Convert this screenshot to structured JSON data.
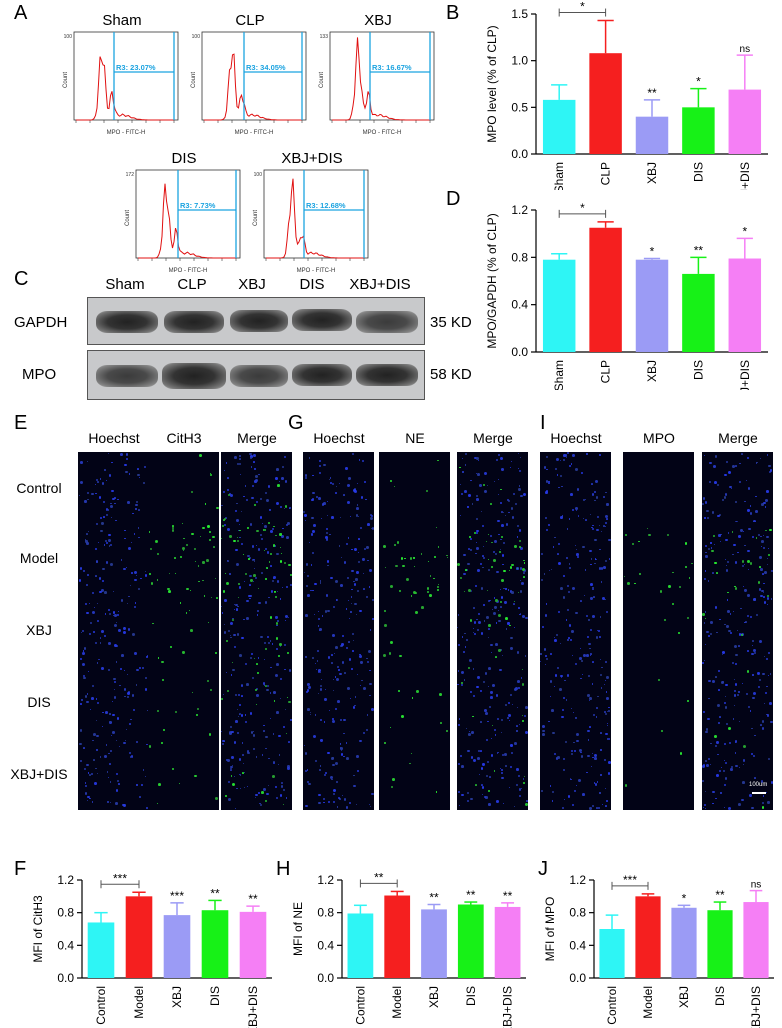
{
  "panels": {
    "A": "A",
    "B": "B",
    "C": "C",
    "D": "D",
    "E": "E",
    "F": "F",
    "G": "G",
    "H": "H",
    "I": "I",
    "J": "J"
  },
  "flow": {
    "xaxis_label": "MPO - FITC-H",
    "yaxis_label": "Count",
    "plots": [
      {
        "title": "Sham",
        "gate": "R3: 23.07%",
        "ymax": "100"
      },
      {
        "title": "CLP",
        "gate": "R3: 34.05%",
        "ymax": "100"
      },
      {
        "title": "XBJ",
        "gate": "R3: 16.67%",
        "ymax": "133"
      },
      {
        "title": "DIS",
        "gate": "R3: 7.73%",
        "ymax": "172"
      },
      {
        "title": "XBJ+DIS",
        "gate": "R3: 12.68%",
        "ymax": "100"
      }
    ]
  },
  "western": {
    "lanes": [
      "Sham",
      "CLP",
      "XBJ",
      "DIS",
      "XBJ+DIS"
    ],
    "rows": [
      {
        "protein": "GAPDH",
        "kd": "35 KD"
      },
      {
        "protein": "MPO",
        "kd": "58 KD"
      }
    ]
  },
  "immuno": {
    "rows": [
      "Control",
      "Model",
      "XBJ",
      "DIS",
      "XBJ+DIS"
    ],
    "groups": [
      {
        "panel": "E",
        "channels": [
          "Hoechst",
          "CitH3",
          "Merge"
        ]
      },
      {
        "panel": "G",
        "channels": [
          "Hoechst",
          "NE",
          "Merge"
        ]
      },
      {
        "panel": "I",
        "channels": [
          "Hoechst",
          "MPO",
          "Merge"
        ]
      }
    ],
    "scale_bar": "100um"
  },
  "chart_data": [
    {
      "id": "B",
      "type": "bar",
      "categories": [
        "Sham",
        "CLP",
        "XBJ",
        "DIS",
        "XBJ+DIS"
      ],
      "values": [
        0.58,
        1.08,
        0.4,
        0.5,
        0.69
      ],
      "errors": [
        0.16,
        0.35,
        0.18,
        0.2,
        0.37
      ],
      "colors": [
        "#2ef5f5",
        "#f51f1f",
        "#9b9bf5",
        "#17f117",
        "#f57ff5"
      ],
      "sig": [
        "",
        "",
        "**",
        "*",
        "ns"
      ],
      "bracket": {
        "from": 0,
        "to": 1,
        "label": "*"
      },
      "ylabel": "MPO level (% of CLP)",
      "ylim": [
        0,
        1.5
      ],
      "yticks": [
        "0.0",
        "0.5",
        "1.0",
        "1.5"
      ]
    },
    {
      "id": "D",
      "type": "bar",
      "categories": [
        "Sham",
        "CLP",
        "XBJ",
        "DIS",
        "XBJ+DIS"
      ],
      "values": [
        0.78,
        1.05,
        0.78,
        0.66,
        0.79
      ],
      "errors": [
        0.05,
        0.05,
        0.01,
        0.14,
        0.17
      ],
      "colors": [
        "#2ef5f5",
        "#f51f1f",
        "#9b9bf5",
        "#17f117",
        "#f57ff5"
      ],
      "sig": [
        "",
        "",
        "*",
        "**",
        "*"
      ],
      "bracket": {
        "from": 0,
        "to": 1,
        "label": "*"
      },
      "ylabel": "MPO/GAPDH (% of CLP)",
      "ylim": [
        0,
        1.2
      ],
      "yticks": [
        "0.0",
        "0.4",
        "0.8",
        "1.2"
      ]
    },
    {
      "id": "F",
      "type": "bar",
      "categories": [
        "Control",
        "Model",
        "XBJ",
        "DIS",
        "XBJ+DIS"
      ],
      "values": [
        0.68,
        1.0,
        0.77,
        0.83,
        0.81
      ],
      "errors": [
        0.12,
        0.05,
        0.15,
        0.12,
        0.07
      ],
      "colors": [
        "#2ef5f5",
        "#f51f1f",
        "#9b9bf5",
        "#17f117",
        "#f57ff5"
      ],
      "sig": [
        "",
        "",
        "***",
        "**",
        "**"
      ],
      "bracket": {
        "from": 0,
        "to": 1,
        "label": "***"
      },
      "ylabel": "MFI of CitH3",
      "ylim": [
        0,
        1.2
      ],
      "yticks": [
        "0.0",
        "0.4",
        "0.8",
        "1.2"
      ]
    },
    {
      "id": "H",
      "type": "bar",
      "categories": [
        "Control",
        "Model",
        "XBJ",
        "DIS",
        "XBJ+DIS"
      ],
      "values": [
        0.79,
        1.01,
        0.84,
        0.9,
        0.87
      ],
      "errors": [
        0.1,
        0.05,
        0.06,
        0.03,
        0.05
      ],
      "colors": [
        "#2ef5f5",
        "#f51f1f",
        "#9b9bf5",
        "#17f117",
        "#f57ff5"
      ],
      "sig": [
        "",
        "",
        "**",
        "**",
        "**"
      ],
      "bracket": {
        "from": 0,
        "to": 1,
        "label": "**"
      },
      "ylabel": "MFI of NE",
      "ylim": [
        0,
        1.2
      ],
      "yticks": [
        "0.0",
        "0.4",
        "0.8",
        "1.2"
      ]
    },
    {
      "id": "J",
      "type": "bar",
      "categories": [
        "Control",
        "Model",
        "XBJ",
        "DIS",
        "XBJ+DIS"
      ],
      "values": [
        0.6,
        1.0,
        0.86,
        0.83,
        0.93
      ],
      "errors": [
        0.17,
        0.03,
        0.03,
        0.1,
        0.14
      ],
      "colors": [
        "#2ef5f5",
        "#f51f1f",
        "#9b9bf5",
        "#17f117",
        "#f57ff5"
      ],
      "sig": [
        "",
        "",
        "*",
        "**",
        "ns"
      ],
      "bracket": {
        "from": 0,
        "to": 1,
        "label": "***"
      },
      "ylabel": "MFI of MPO",
      "ylim": [
        0,
        1.2
      ],
      "yticks": [
        "0.0",
        "0.4",
        "0.8",
        "1.2"
      ]
    }
  ]
}
